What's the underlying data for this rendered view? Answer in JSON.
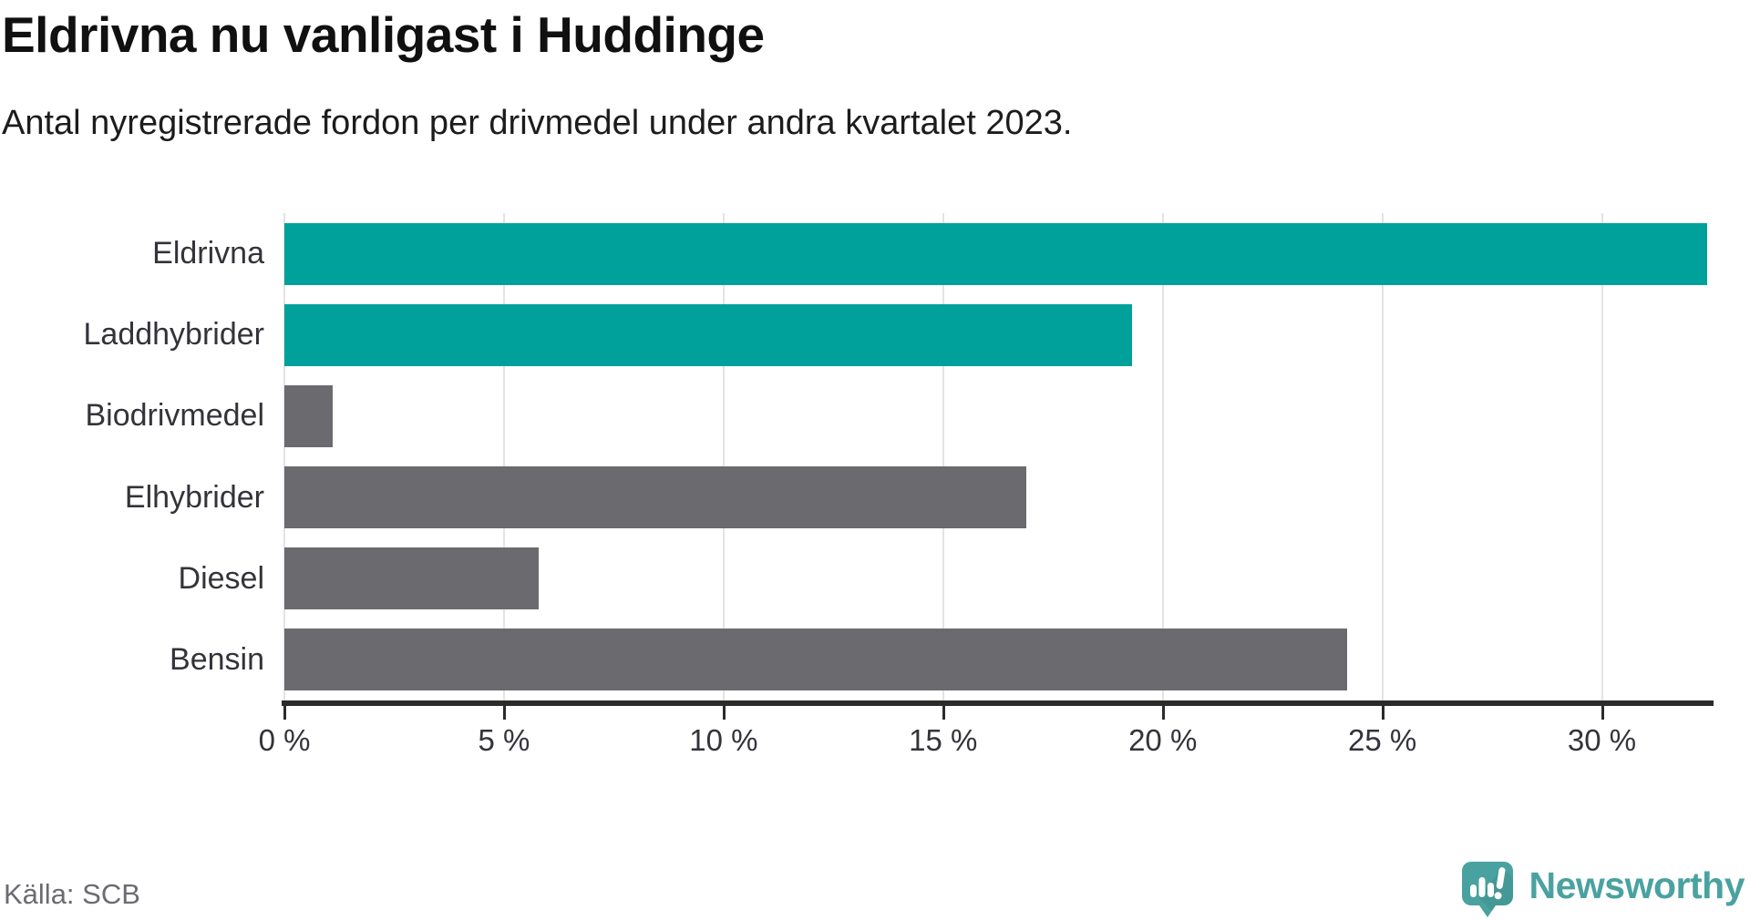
{
  "title": "Eldrivna nu vanligast i Huddinge",
  "subtitle": "Antal nyregistrerade fordon per drivmedel under andra kvartalet 2023.",
  "source": "Källa: SCB",
  "brand": {
    "name": "Newsworthy"
  },
  "colors": {
    "highlight": "#00a19a",
    "neutral": "#6a6a6f",
    "gridline": "#e3e3e3",
    "axis": "#2b2b2b",
    "brand_teal": "#4aa2a0"
  },
  "chart_data": {
    "type": "bar",
    "orientation": "horizontal",
    "title": "Eldrivna nu vanligast i Huddinge",
    "subtitle": "Antal nyregistrerade fordon per drivmedel under andra kvartalet 2023.",
    "categories": [
      "Eldrivna",
      "Laddhybrider",
      "Biodrivmedel",
      "Elhybrider",
      "Diesel",
      "Bensin"
    ],
    "values": [
      32.4,
      19.3,
      1.1,
      16.9,
      5.8,
      24.2
    ],
    "unit": "%",
    "bar_color_roles": [
      "highlight",
      "highlight",
      "neutral",
      "neutral",
      "neutral",
      "neutral"
    ],
    "xlim": [
      0,
      32.5
    ],
    "x_ticks": [
      0,
      5,
      10,
      15,
      20,
      25,
      30
    ],
    "x_tick_format": "{v} %",
    "grid": true,
    "legend": "none"
  }
}
